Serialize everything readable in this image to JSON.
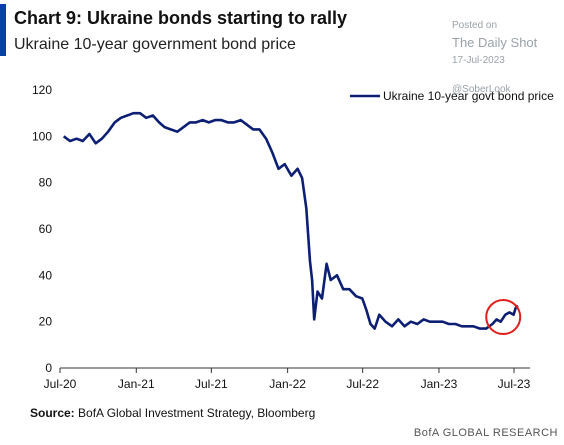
{
  "header": {
    "title": "Chart 9: Ukraine bonds starting to rally",
    "subtitle": "Ukraine 10-year government bond price"
  },
  "watermark": {
    "posted": "Posted on",
    "brand": "The Daily Shot",
    "date": "17-Jul-2023",
    "handle": "@SoberLook"
  },
  "footer": {
    "source_label": "Source:",
    "source_text": "BofA Global Investment Strategy, Bloomberg",
    "brand": "BofA GLOBAL RESEARCH"
  },
  "colors": {
    "accent": "#0b3fa5",
    "series": "#0d1f73",
    "highlight": "#e0201c"
  },
  "chart_data": {
    "type": "line",
    "x_ticks": [
      "Jul-20",
      "Jan-21",
      "Jul-21",
      "Jan-22",
      "Jul-22",
      "Jan-23",
      "Jul-23"
    ],
    "y_ticks": [
      0,
      20,
      40,
      60,
      80,
      100,
      120
    ],
    "ylim": [
      0,
      120
    ],
    "legend": {
      "position": "top-right",
      "label": "Ukraine 10-year govt bond price"
    },
    "series": [
      {
        "name": "Ukraine 10-year govt bond price",
        "points": [
          [
            "2020-07-10",
            100
          ],
          [
            "2020-07-25",
            98
          ],
          [
            "2020-08-10",
            99
          ],
          [
            "2020-08-25",
            98
          ],
          [
            "2020-09-10",
            101
          ],
          [
            "2020-09-25",
            97
          ],
          [
            "2020-10-10",
            99
          ],
          [
            "2020-10-25",
            102
          ],
          [
            "2020-11-10",
            106
          ],
          [
            "2020-11-25",
            108
          ],
          [
            "2020-12-10",
            109
          ],
          [
            "2020-12-25",
            110
          ],
          [
            "2021-01-10",
            110
          ],
          [
            "2021-01-25",
            108
          ],
          [
            "2021-02-10",
            109
          ],
          [
            "2021-02-25",
            106
          ],
          [
            "2021-03-10",
            104
          ],
          [
            "2021-03-25",
            103
          ],
          [
            "2021-04-10",
            102
          ],
          [
            "2021-04-25",
            104
          ],
          [
            "2021-05-10",
            106
          ],
          [
            "2021-05-25",
            106
          ],
          [
            "2021-06-10",
            107
          ],
          [
            "2021-06-25",
            106
          ],
          [
            "2021-07-10",
            107
          ],
          [
            "2021-07-25",
            107
          ],
          [
            "2021-08-10",
            106
          ],
          [
            "2021-08-25",
            106
          ],
          [
            "2021-09-10",
            107
          ],
          [
            "2021-09-25",
            105
          ],
          [
            "2021-10-10",
            103
          ],
          [
            "2021-10-25",
            103
          ],
          [
            "2021-11-10",
            99
          ],
          [
            "2021-11-25",
            93
          ],
          [
            "2021-12-10",
            86
          ],
          [
            "2021-12-25",
            88
          ],
          [
            "2022-01-10",
            83
          ],
          [
            "2022-01-25",
            86
          ],
          [
            "2022-02-05",
            82
          ],
          [
            "2022-02-15",
            69
          ],
          [
            "2022-02-24",
            46
          ],
          [
            "2022-03-01",
            38
          ],
          [
            "2022-03-06",
            21
          ],
          [
            "2022-03-14",
            33
          ],
          [
            "2022-03-25",
            30
          ],
          [
            "2022-04-05",
            45
          ],
          [
            "2022-04-15",
            38
          ],
          [
            "2022-04-30",
            40
          ],
          [
            "2022-05-15",
            34
          ],
          [
            "2022-05-30",
            34
          ],
          [
            "2022-06-15",
            31
          ],
          [
            "2022-06-30",
            30
          ],
          [
            "2022-07-10",
            25
          ],
          [
            "2022-07-20",
            19
          ],
          [
            "2022-07-30",
            17
          ],
          [
            "2022-08-10",
            23
          ],
          [
            "2022-08-25",
            20
          ],
          [
            "2022-09-10",
            18
          ],
          [
            "2022-09-25",
            21
          ],
          [
            "2022-10-10",
            18
          ],
          [
            "2022-10-25",
            20
          ],
          [
            "2022-11-10",
            19
          ],
          [
            "2022-11-25",
            21
          ],
          [
            "2022-12-10",
            20
          ],
          [
            "2022-12-25",
            20
          ],
          [
            "2023-01-10",
            20
          ],
          [
            "2023-01-25",
            19
          ],
          [
            "2023-02-10",
            19
          ],
          [
            "2023-02-25",
            18
          ],
          [
            "2023-03-10",
            18
          ],
          [
            "2023-03-25",
            18
          ],
          [
            "2023-04-10",
            17
          ],
          [
            "2023-04-25",
            17
          ],
          [
            "2023-05-10",
            19
          ],
          [
            "2023-05-20",
            21
          ],
          [
            "2023-05-30",
            20
          ],
          [
            "2023-06-10",
            23
          ],
          [
            "2023-06-20",
            24
          ],
          [
            "2023-06-30",
            23
          ],
          [
            "2023-07-05",
            26
          ],
          [
            "2023-07-10",
            27
          ]
        ]
      }
    ],
    "annotation": {
      "type": "circle",
      "x": "2023-06-05",
      "y": 22
    }
  }
}
